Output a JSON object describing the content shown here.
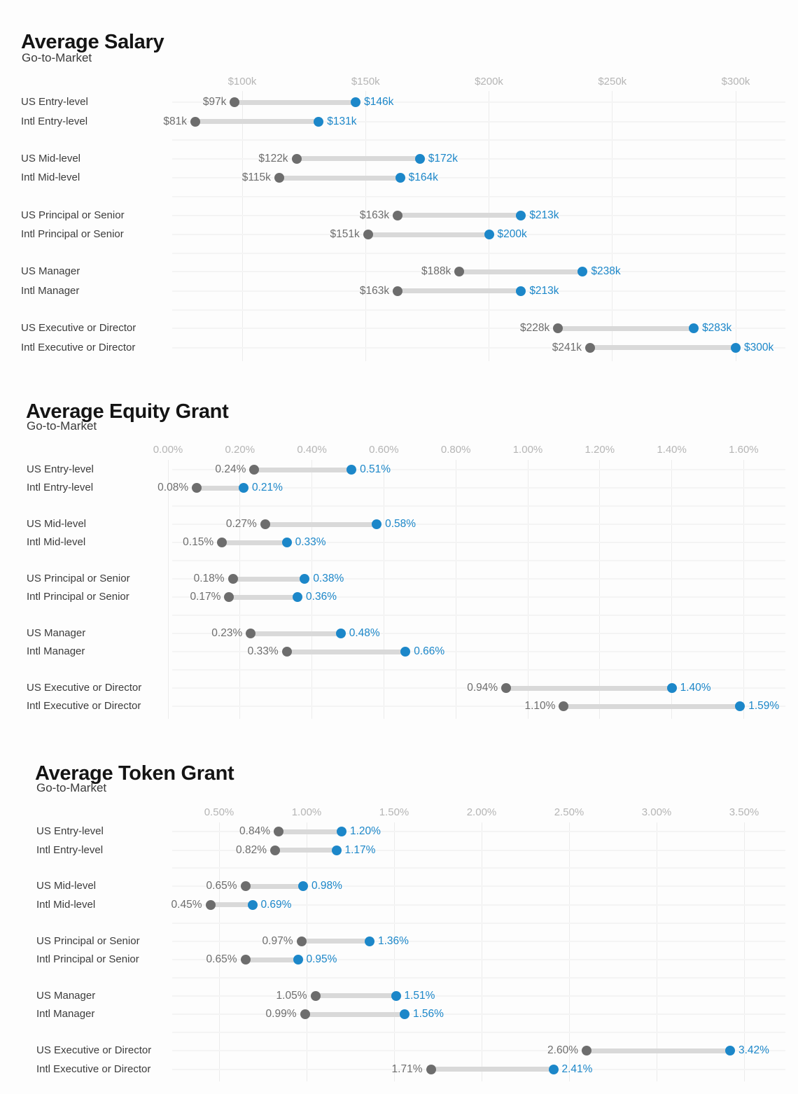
{
  "colors": {
    "blue": "#1c87c9",
    "gray_dot": "#6d6d6d",
    "bar": "#d9d9d9",
    "axis_text": "#b5b5b5",
    "cat_text": "#3c3c3c",
    "min_text": "#6e6e6e",
    "title_text": "#141414",
    "subtitle_text": "#3a3a3a",
    "bg": "#fdfdfd"
  },
  "chart_data": [
    {
      "type": "dumbbell",
      "title": "Average Salary",
      "subtitle": "Go-to-Market",
      "xlabel": "",
      "ylabel": "",
      "grid": "on",
      "legend": "none",
      "xlim": [
        72,
        320
      ],
      "axis": {
        "tick_labels": [
          "$100k",
          "$150k",
          "$200k",
          "$250k",
          "$300k"
        ],
        "tick_values": [
          100,
          150,
          200,
          250,
          300
        ]
      },
      "rows": [
        {
          "label": "US Entry-level",
          "min": 97,
          "max": 146,
          "min_label": "$97k",
          "max_label": "$146k"
        },
        {
          "label": "Intl Entry-level",
          "min": 81,
          "max": 131,
          "min_label": "$81k",
          "max_label": "$131k"
        },
        {
          "label": "US Mid-level",
          "min": 122,
          "max": 172,
          "min_label": "$122k",
          "max_label": "$172k"
        },
        {
          "label": "Intl Mid-level",
          "min": 115,
          "max": 164,
          "min_label": "$115k",
          "max_label": "$164k"
        },
        {
          "label": "US Principal or Senior",
          "min": 163,
          "max": 213,
          "min_label": "$163k",
          "max_label": "$213k"
        },
        {
          "label": "Intl Principal or Senior",
          "min": 151,
          "max": 200,
          "min_label": "$151k",
          "max_label": "$200k"
        },
        {
          "label": "US Manager",
          "min": 188,
          "max": 238,
          "min_label": "$188k",
          "max_label": "$238k"
        },
        {
          "label": "Intl Manager",
          "min": 163,
          "max": 213,
          "min_label": "$163k",
          "max_label": "$213k"
        },
        {
          "label": "US Executive or Director",
          "min": 228,
          "max": 283,
          "min_label": "$228k",
          "max_label": "$283k"
        },
        {
          "label": "Intl Executive or Director",
          "min": 241,
          "max": 300,
          "min_label": "$241k",
          "max_label": "$300k"
        }
      ]
    },
    {
      "type": "dumbbell",
      "title": "Average Equity Grant",
      "subtitle": "Go-to-Market",
      "xlabel": "",
      "ylabel": "",
      "grid": "on",
      "legend": "none",
      "xlim": [
        0,
        1.72
      ],
      "axis": {
        "tick_labels": [
          "0.00%",
          "0.20%",
          "0.40%",
          "0.60%",
          "0.80%",
          "1.00%",
          "1.20%",
          "1.40%",
          "1.60%"
        ],
        "tick_values": [
          0.0,
          0.2,
          0.4,
          0.6,
          0.8,
          1.0,
          1.2,
          1.4,
          1.6
        ]
      },
      "rows": [
        {
          "label": "US Entry-level",
          "min": 0.24,
          "max": 0.51,
          "min_label": "0.24%",
          "max_label": "0.51%"
        },
        {
          "label": "Intl Entry-level",
          "min": 0.08,
          "max": 0.21,
          "min_label": "0.08%",
          "max_label": "0.21%"
        },
        {
          "label": "US Mid-level",
          "min": 0.27,
          "max": 0.58,
          "min_label": "0.27%",
          "max_label": "0.58%"
        },
        {
          "label": "Intl Mid-level",
          "min": 0.15,
          "max": 0.33,
          "min_label": "0.15%",
          "max_label": "0.33%"
        },
        {
          "label": "US Principal or Senior",
          "min": 0.18,
          "max": 0.38,
          "min_label": "0.18%",
          "max_label": "0.38%"
        },
        {
          "label": "Intl Principal or Senior",
          "min": 0.17,
          "max": 0.36,
          "min_label": "0.17%",
          "max_label": "0.36%"
        },
        {
          "label": "US Manager",
          "min": 0.23,
          "max": 0.48,
          "min_label": "0.23%",
          "max_label": "0.48%"
        },
        {
          "label": "Intl Manager",
          "min": 0.33,
          "max": 0.66,
          "min_label": "0.33%",
          "max_label": "0.66%"
        },
        {
          "label": "US Executive or Director",
          "min": 0.94,
          "max": 1.4,
          "min_label": "0.94%",
          "max_label": "1.40%"
        },
        {
          "label": "Intl Executive or Director",
          "min": 1.1,
          "max": 1.59,
          "min_label": "1.10%",
          "max_label": "1.59%"
        }
      ]
    },
    {
      "type": "dumbbell",
      "title": "Average Token Grant",
      "subtitle": "Go-to-Market",
      "xlabel": "",
      "ylabel": "",
      "grid": "on",
      "legend": "none",
      "xlim": [
        0.23,
        3.74
      ],
      "axis": {
        "tick_labels": [
          "0.50%",
          "1.00%",
          "1.50%",
          "2.00%",
          "2.50%",
          "3.00%",
          "3.50%"
        ],
        "tick_values": [
          0.5,
          1.0,
          1.5,
          2.0,
          2.5,
          3.0,
          3.5
        ]
      },
      "rows": [
        {
          "label": "US Entry-level",
          "min": 0.84,
          "max": 1.2,
          "min_label": "0.84%",
          "max_label": "1.20%"
        },
        {
          "label": "Intl Entry-level",
          "min": 0.82,
          "max": 1.17,
          "min_label": "0.82%",
          "max_label": "1.17%"
        },
        {
          "label": "US Mid-level",
          "min": 0.65,
          "max": 0.98,
          "min_label": "0.65%",
          "max_label": "0.98%"
        },
        {
          "label": "Intl Mid-level",
          "min": 0.45,
          "max": 0.69,
          "min_label": "0.45%",
          "max_label": "0.69%"
        },
        {
          "label": "US Principal or Senior",
          "min": 0.97,
          "max": 1.36,
          "min_label": "0.97%",
          "max_label": "1.36%"
        },
        {
          "label": "Intl Principal or Senior",
          "min": 0.65,
          "max": 0.95,
          "min_label": "0.65%",
          "max_label": "0.95%"
        },
        {
          "label": "US Manager",
          "min": 1.05,
          "max": 1.51,
          "min_label": "1.05%",
          "max_label": "1.51%"
        },
        {
          "label": "Intl Manager",
          "min": 0.99,
          "max": 1.56,
          "min_label": "0.99%",
          "max_label": "1.56%"
        },
        {
          "label": "US Executive or Director",
          "min": 2.6,
          "max": 3.42,
          "min_label": "2.60%",
          "max_label": "3.42%"
        },
        {
          "label": "Intl Executive or Director",
          "min": 1.71,
          "max": 2.41,
          "min_label": "1.71%",
          "max_label": "2.41%"
        }
      ]
    }
  ]
}
